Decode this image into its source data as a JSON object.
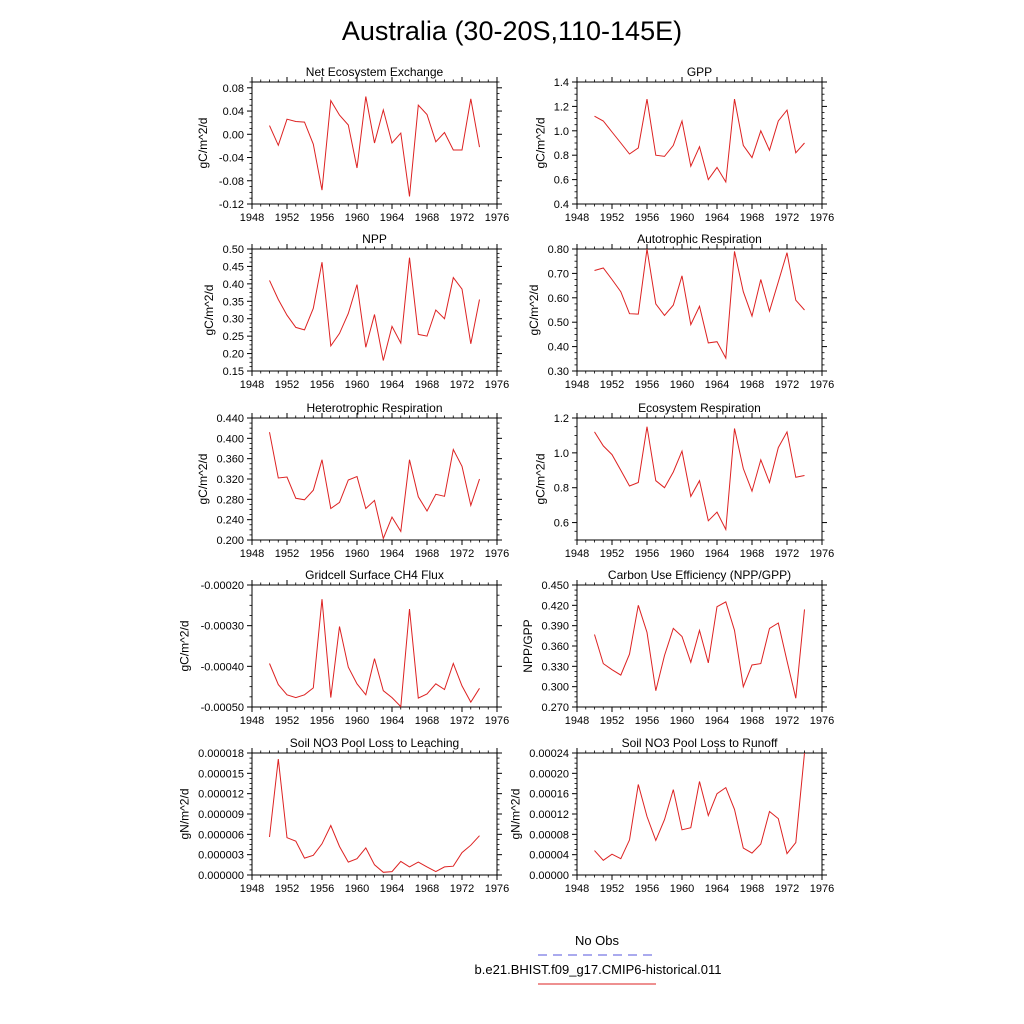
{
  "figure": {
    "title": "Australia (30-20S,110-145E)",
    "legend": [
      {
        "label": "No Obs",
        "color": "#5555dd",
        "dash": "dashed"
      },
      {
        "label": "b.e21.BHIST.f09_g17.CMIP6-historical.011",
        "color": "#dd2222",
        "dash": "solid"
      }
    ]
  },
  "chart_data": [
    {
      "type": "line",
      "title": "Net Ecosystem Exchange",
      "ylabel": "gC/m^2/d",
      "xlim": [
        1948,
        1976
      ],
      "xticks": [
        1948,
        1952,
        1956,
        1960,
        1964,
        1968,
        1972,
        1976
      ],
      "xticklabels": [
        "1948",
        "1952",
        "1956",
        "1960",
        "1964",
        "1968",
        "1972",
        "1976"
      ],
      "ylim": [
        -0.12,
        0.09
      ],
      "yticks": [
        -0.12,
        -0.08,
        -0.04,
        0.0,
        0.04,
        0.08
      ],
      "yticklabels": [
        "-0.12",
        "-0.08",
        "-0.04",
        "0.00",
        "0.04",
        "0.08"
      ],
      "x": [
        1950,
        1951,
        1952,
        1953,
        1954,
        1955,
        1956,
        1957,
        1958,
        1959,
        1960,
        1961,
        1962,
        1963,
        1964,
        1965,
        1966,
        1967,
        1968,
        1969,
        1970,
        1971,
        1972,
        1973,
        1974
      ],
      "series": [
        {
          "values": [
            0.015,
            -0.019,
            0.026,
            0.022,
            0.021,
            -0.017,
            -0.096,
            0.058,
            0.033,
            0.016,
            -0.058,
            0.065,
            -0.015,
            0.042,
            -0.015,
            0.002,
            -0.107,
            0.05,
            0.034,
            -0.013,
            0.003,
            -0.027,
            -0.027,
            0.061,
            -0.022
          ]
        }
      ]
    },
    {
      "type": "line",
      "title": "GPP",
      "ylabel": "gC/m^2/d",
      "xlim": [
        1948,
        1976
      ],
      "xticks": [
        1948,
        1952,
        1956,
        1960,
        1964,
        1968,
        1972,
        1976
      ],
      "xticklabels": [
        "1948",
        "1952",
        "1956",
        "1960",
        "1964",
        "1968",
        "1972",
        "1976"
      ],
      "ylim": [
        0.4,
        1.4
      ],
      "yticks": [
        0.4,
        0.6,
        0.8,
        1.0,
        1.2,
        1.4
      ],
      "yticklabels": [
        "0.4",
        "0.6",
        "0.8",
        "1.0",
        "1.2",
        "1.4"
      ],
      "x": [
        1950,
        1951,
        1952,
        1953,
        1954,
        1955,
        1956,
        1957,
        1958,
        1959,
        1960,
        1961,
        1962,
        1963,
        1964,
        1965,
        1966,
        1967,
        1968,
        1969,
        1970,
        1971,
        1972,
        1973,
        1974
      ],
      "series": [
        {
          "values": [
            1.12,
            1.08,
            0.99,
            0.9,
            0.81,
            0.86,
            1.26,
            0.8,
            0.79,
            0.88,
            1.08,
            0.71,
            0.87,
            0.6,
            0.7,
            0.58,
            1.26,
            0.88,
            0.78,
            1.0,
            0.84,
            1.08,
            1.17,
            0.82,
            0.9
          ]
        }
      ]
    },
    {
      "type": "line",
      "title": "NPP",
      "ylabel": "gC/m^2/d",
      "xlim": [
        1948,
        1976
      ],
      "xticks": [
        1948,
        1952,
        1956,
        1960,
        1964,
        1968,
        1972,
        1976
      ],
      "xticklabels": [
        "1948",
        "1952",
        "1956",
        "1960",
        "1964",
        "1968",
        "1972",
        "1976"
      ],
      "ylim": [
        0.15,
        0.5
      ],
      "yticks": [
        0.15,
        0.2,
        0.25,
        0.3,
        0.35,
        0.4,
        0.45,
        0.5
      ],
      "yticklabels": [
        "0.15",
        "0.20",
        "0.25",
        "0.30",
        "0.35",
        "0.40",
        "0.45",
        "0.50"
      ],
      "x": [
        1950,
        1951,
        1952,
        1953,
        1954,
        1955,
        1956,
        1957,
        1958,
        1959,
        1960,
        1961,
        1962,
        1963,
        1964,
        1965,
        1966,
        1967,
        1968,
        1969,
        1970,
        1971,
        1972,
        1973,
        1974
      ],
      "series": [
        {
          "values": [
            0.41,
            0.355,
            0.31,
            0.275,
            0.268,
            0.33,
            0.462,
            0.222,
            0.258,
            0.315,
            0.398,
            0.218,
            0.312,
            0.18,
            0.278,
            0.23,
            0.475,
            0.255,
            0.25,
            0.325,
            0.3,
            0.418,
            0.385,
            0.228,
            0.355
          ]
        }
      ]
    },
    {
      "type": "line",
      "title": "Autotrophic Respiration",
      "ylabel": "gC/m^2/d",
      "xlim": [
        1948,
        1976
      ],
      "xticks": [
        1948,
        1952,
        1956,
        1960,
        1964,
        1968,
        1972,
        1976
      ],
      "xticklabels": [
        "1948",
        "1952",
        "1956",
        "1960",
        "1964",
        "1968",
        "1972",
        "1976"
      ],
      "ylim": [
        0.3,
        0.8
      ],
      "yticks": [
        0.3,
        0.4,
        0.5,
        0.6,
        0.7,
        0.8
      ],
      "yticklabels": [
        "0.30",
        "0.40",
        "0.50",
        "0.60",
        "0.70",
        "0.80"
      ],
      "x": [
        1950,
        1951,
        1952,
        1953,
        1954,
        1955,
        1956,
        1957,
        1958,
        1959,
        1960,
        1961,
        1962,
        1963,
        1964,
        1965,
        1966,
        1967,
        1968,
        1969,
        1970,
        1971,
        1972,
        1973,
        1974
      ],
      "series": [
        {
          "values": [
            0.712,
            0.722,
            0.675,
            0.625,
            0.535,
            0.533,
            0.8,
            0.575,
            0.528,
            0.57,
            0.69,
            0.49,
            0.565,
            0.415,
            0.42,
            0.353,
            0.79,
            0.625,
            0.525,
            0.675,
            0.545,
            0.665,
            0.785,
            0.59,
            0.55
          ]
        }
      ]
    },
    {
      "type": "line",
      "title": "Heterotrophic Respiration",
      "ylabel": "gC/m^2/d",
      "xlim": [
        1948,
        1976
      ],
      "xticks": [
        1948,
        1952,
        1956,
        1960,
        1964,
        1968,
        1972,
        1976
      ],
      "xticklabels": [
        "1948",
        "1952",
        "1956",
        "1960",
        "1964",
        "1968",
        "1972",
        "1976"
      ],
      "ylim": [
        0.2,
        0.44
      ],
      "yticks": [
        0.2,
        0.24,
        0.28,
        0.32,
        0.36,
        0.4,
        0.44
      ],
      "yticklabels": [
        "0.200",
        "0.240",
        "0.280",
        "0.320",
        "0.360",
        "0.400",
        "0.440"
      ],
      "x": [
        1950,
        1951,
        1952,
        1953,
        1954,
        1955,
        1956,
        1957,
        1958,
        1959,
        1960,
        1961,
        1962,
        1963,
        1964,
        1965,
        1966,
        1967,
        1968,
        1969,
        1970,
        1971,
        1972,
        1973,
        1974
      ],
      "series": [
        {
          "values": [
            0.412,
            0.322,
            0.324,
            0.282,
            0.279,
            0.298,
            0.358,
            0.262,
            0.274,
            0.318,
            0.325,
            0.262,
            0.278,
            0.203,
            0.245,
            0.217,
            0.358,
            0.285,
            0.257,
            0.29,
            0.286,
            0.378,
            0.345,
            0.268,
            0.32
          ]
        }
      ]
    },
    {
      "type": "line",
      "title": "Ecosystem Respiration",
      "ylabel": "gC/m^2/d",
      "xlim": [
        1948,
        1976
      ],
      "xticks": [
        1948,
        1952,
        1956,
        1960,
        1964,
        1968,
        1972,
        1976
      ],
      "xticklabels": [
        "1948",
        "1952",
        "1956",
        "1960",
        "1964",
        "1968",
        "1972",
        "1976"
      ],
      "ylim": [
        0.5,
        1.2
      ],
      "yticks": [
        0.6,
        0.8,
        1.0,
        1.2
      ],
      "yticklabels": [
        "0.6",
        "0.8",
        "1.0",
        "1.2"
      ],
      "x": [
        1950,
        1951,
        1952,
        1953,
        1954,
        1955,
        1956,
        1957,
        1958,
        1959,
        1960,
        1961,
        1962,
        1963,
        1964,
        1965,
        1966,
        1967,
        1968,
        1969,
        1970,
        1971,
        1972,
        1973,
        1974
      ],
      "series": [
        {
          "values": [
            1.12,
            1.04,
            0.99,
            0.9,
            0.81,
            0.83,
            1.15,
            0.84,
            0.8,
            0.89,
            1.01,
            0.75,
            0.84,
            0.61,
            0.66,
            0.56,
            1.14,
            0.91,
            0.78,
            0.96,
            0.83,
            1.03,
            1.12,
            0.86,
            0.87
          ]
        }
      ]
    },
    {
      "type": "line",
      "title": "Gridcell Surface CH4 Flux",
      "ylabel": "gC/m^2/d",
      "xlim": [
        1948,
        1976
      ],
      "xticks": [
        1948,
        1952,
        1956,
        1960,
        1964,
        1968,
        1972,
        1976
      ],
      "xticklabels": [
        "1948",
        "1952",
        "1956",
        "1960",
        "1964",
        "1968",
        "1972",
        "1976"
      ],
      "ylim": [
        -0.0005,
        -0.0002
      ],
      "yticks": [
        -0.0005,
        -0.0004,
        -0.0003,
        -0.0002
      ],
      "yticklabels": [
        "-0.00050",
        "-0.00040",
        "-0.00030",
        "-0.00020"
      ],
      "x": [
        1950,
        1951,
        1952,
        1953,
        1954,
        1955,
        1956,
        1957,
        1958,
        1959,
        1960,
        1961,
        1962,
        1963,
        1964,
        1965,
        1966,
        1967,
        1968,
        1969,
        1970,
        1971,
        1972,
        1973,
        1974
      ],
      "series": [
        {
          "values": [
            -0.000393,
            -0.000445,
            -0.00047,
            -0.000477,
            -0.00047,
            -0.000453,
            -0.000235,
            -0.000477,
            -0.000302,
            -0.000402,
            -0.000443,
            -0.00047,
            -0.000381,
            -0.00046,
            -0.000477,
            -0.000499,
            -0.000259,
            -0.000478,
            -0.000468,
            -0.000443,
            -0.000457,
            -0.000393,
            -0.000448,
            -0.000488,
            -0.000454
          ]
        }
      ]
    },
    {
      "type": "line",
      "title": "Carbon Use Efficiency (NPP/GPP)",
      "ylabel": "NPP/GPP",
      "xlim": [
        1948,
        1976
      ],
      "xticks": [
        1948,
        1952,
        1956,
        1960,
        1964,
        1968,
        1972,
        1976
      ],
      "xticklabels": [
        "1948",
        "1952",
        "1956",
        "1960",
        "1964",
        "1968",
        "1972",
        "1976"
      ],
      "ylim": [
        0.27,
        0.45
      ],
      "yticks": [
        0.27,
        0.3,
        0.33,
        0.36,
        0.39,
        0.42,
        0.45
      ],
      "yticklabels": [
        "0.270",
        "0.300",
        "0.330",
        "0.360",
        "0.390",
        "0.420",
        "0.450"
      ],
      "x": [
        1950,
        1951,
        1952,
        1953,
        1954,
        1955,
        1956,
        1957,
        1958,
        1959,
        1960,
        1961,
        1962,
        1963,
        1964,
        1965,
        1966,
        1967,
        1968,
        1969,
        1970,
        1971,
        1972,
        1973,
        1974
      ],
      "series": [
        {
          "values": [
            0.377,
            0.334,
            0.325,
            0.317,
            0.348,
            0.42,
            0.38,
            0.294,
            0.346,
            0.386,
            0.374,
            0.336,
            0.383,
            0.335,
            0.418,
            0.425,
            0.383,
            0.3,
            0.332,
            0.334,
            0.386,
            0.394,
            0.338,
            0.283,
            0.414
          ]
        }
      ]
    },
    {
      "type": "line",
      "title": "Soil NO3 Pool Loss to Leaching",
      "ylabel": "gN/m^2/d",
      "xlim": [
        1948,
        1976
      ],
      "xticks": [
        1948,
        1952,
        1956,
        1960,
        1964,
        1968,
        1972,
        1976
      ],
      "xticklabels": [
        "1948",
        "1952",
        "1956",
        "1960",
        "1964",
        "1968",
        "1972",
        "1976"
      ],
      "ylim": [
        0,
        1.8e-05
      ],
      "yticks": [
        0,
        3e-06,
        6e-06,
        9e-06,
        1.2e-05,
        1.5e-05,
        1.8e-05
      ],
      "yticklabels": [
        "0.000000",
        "0.000003",
        "0.000006",
        "0.000009",
        "0.000012",
        "0.000015",
        "0.000018"
      ],
      "x": [
        1950,
        1951,
        1952,
        1953,
        1954,
        1955,
        1956,
        1957,
        1958,
        1959,
        1960,
        1961,
        1962,
        1963,
        1964,
        1965,
        1966,
        1967,
        1968,
        1969,
        1970,
        1971,
        1972,
        1973,
        1974
      ],
      "series": [
        {
          "values": [
            5.6e-06,
            1.71e-05,
            5.5e-06,
            5e-06,
            2.5e-06,
            2.9e-06,
            4.6e-06,
            7.3e-06,
            4.2e-06,
            1.9e-06,
            2.4e-06,
            4e-06,
            1.5e-06,
            4e-07,
            5e-07,
            2e-06,
            1.2e-06,
            1.9e-06,
            1.2e-06,
            5e-07,
            1.2e-06,
            1.3e-06,
            3.3e-06,
            4.4e-06,
            5.8e-06
          ]
        }
      ]
    },
    {
      "type": "line",
      "title": "Soil NO3 Pool Loss to Runoff",
      "ylabel": "gN/m^2/d",
      "xlim": [
        1948,
        1976
      ],
      "xticks": [
        1948,
        1952,
        1956,
        1960,
        1964,
        1968,
        1972,
        1976
      ],
      "xticklabels": [
        "1948",
        "1952",
        "1956",
        "1960",
        "1964",
        "1968",
        "1972",
        "1976"
      ],
      "ylim": [
        0,
        0.00024
      ],
      "yticks": [
        0,
        4e-05,
        8e-05,
        0.00012,
        0.00016,
        0.0002,
        0.00024
      ],
      "yticklabels": [
        "0.00000",
        "0.00004",
        "0.00008",
        "0.00012",
        "0.00016",
        "0.00020",
        "0.00024"
      ],
      "x": [
        1950,
        1951,
        1952,
        1953,
        1954,
        1955,
        1956,
        1957,
        1958,
        1959,
        1960,
        1961,
        1962,
        1963,
        1964,
        1965,
        1966,
        1967,
        1968,
        1969,
        1970,
        1971,
        1972,
        1973,
        1974
      ],
      "series": [
        {
          "values": [
            4.8e-05,
            2.9e-05,
            4.1e-05,
            3.2e-05,
            6.9e-05,
            0.000178,
            0.000115,
            6.8e-05,
            0.000109,
            0.000168,
            8.9e-05,
            9.3e-05,
            0.000184,
            0.000117,
            0.00016,
            0.000172,
            0.000129,
            5.3e-05,
            4.3e-05,
            6.1e-05,
            0.000125,
            0.000111,
            4.2e-05,
            6.4e-05,
            0.00024
          ]
        }
      ]
    }
  ]
}
